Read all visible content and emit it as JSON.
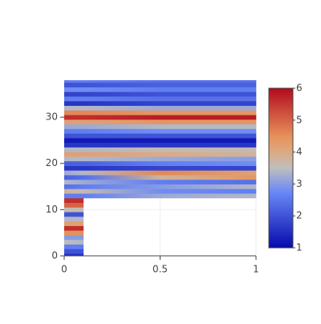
{
  "chart_data": {
    "type": "contour",
    "x": [
      0,
      0.1,
      0.5,
      1
    ],
    "y": [
      0,
      1,
      2,
      3,
      4,
      5,
      6,
      7,
      8,
      9,
      10,
      11,
      12,
      13,
      14,
      15,
      16,
      17,
      18,
      19,
      20,
      21,
      22,
      23,
      24,
      25,
      26,
      27,
      28,
      29,
      30,
      31,
      32,
      33,
      34,
      35,
      36,
      37,
      38
    ],
    "z": [
      [
        1.5,
        1.5,
        null,
        null
      ],
      [
        2,
        2,
        null,
        null
      ],
      [
        2.6,
        2.6,
        null,
        null
      ],
      [
        3.5,
        3.4,
        null,
        null
      ],
      [
        3,
        3,
        null,
        null
      ],
      [
        4.5,
        4.5,
        null,
        null
      ],
      [
        5.6,
        5.6,
        null,
        null
      ],
      [
        4.2,
        4.2,
        null,
        null
      ],
      [
        3.4,
        3.4,
        null,
        null
      ],
      [
        2,
        2,
        null,
        null
      ],
      [
        3.6,
        3.6,
        null,
        null
      ],
      [
        5,
        5,
        null,
        null
      ],
      [
        5.6,
        5.6,
        null,
        null
      ],
      [
        2.6,
        2.6,
        3.2,
        3.4
      ],
      [
        3.8,
        3.6,
        2.8,
        2.6
      ],
      [
        2.4,
        2.6,
        3.0,
        3.4
      ],
      [
        3.4,
        3.2,
        2.6,
        2.4
      ],
      [
        2.2,
        2.4,
        3.8,
        4.4
      ],
      [
        3.2,
        3.4,
        4.6,
        4.2
      ],
      [
        1.6,
        1.6,
        1.8,
        1.8
      ],
      [
        2.2,
        2.2,
        2.6,
        2.8
      ],
      [
        3.4,
        3.4,
        3.2,
        3.0
      ],
      [
        4.2,
        4.2,
        4.0,
        3.8
      ],
      [
        3.4,
        3.4,
        3.6,
        3.6
      ],
      [
        1.6,
        1.6,
        1.6,
        1.6
      ],
      [
        1.2,
        1.2,
        1.2,
        1.2
      ],
      [
        2.0,
        2.0,
        2.0,
        2.0
      ],
      [
        2.6,
        2.6,
        2.8,
        2.8
      ],
      [
        3.2,
        3.2,
        3.4,
        3.4
      ],
      [
        4.2,
        4.2,
        4.4,
        4.4
      ],
      [
        5.6,
        5.6,
        5.8,
        5.8
      ],
      [
        4.6,
        4.6,
        4.4,
        4.4
      ],
      [
        3.4,
        3.4,
        3.2,
        3.2
      ],
      [
        1.6,
        1.6,
        1.8,
        1.8
      ],
      [
        2.6,
        2.6,
        2.4,
        2.4
      ],
      [
        1.8,
        1.8,
        2.0,
        2.0
      ],
      [
        2.8,
        2.8,
        2.6,
        2.6
      ],
      [
        2.0,
        2.0,
        2.2,
        2.2
      ],
      [
        2.6,
        2.6,
        2.4,
        2.4
      ]
    ],
    "xlim": [
      0,
      1
    ],
    "xticks": [
      0,
      0.5,
      1
    ],
    "ylim": [
      0,
      38
    ],
    "yticks": [
      0,
      10,
      20,
      30
    ],
    "zlim": [
      1,
      6
    ],
    "colorbar_ticks": [
      1,
      2,
      3,
      4,
      5,
      6
    ],
    "colorscale": [
      [
        0,
        "#050aac"
      ],
      [
        0.35,
        "#6a89f7"
      ],
      [
        0.5,
        "#bebebe"
      ],
      [
        0.6,
        "#dcaa84"
      ],
      [
        0.7,
        "#e6915a"
      ],
      [
        1,
        "#b20a1c"
      ]
    ],
    "grid": true
  }
}
